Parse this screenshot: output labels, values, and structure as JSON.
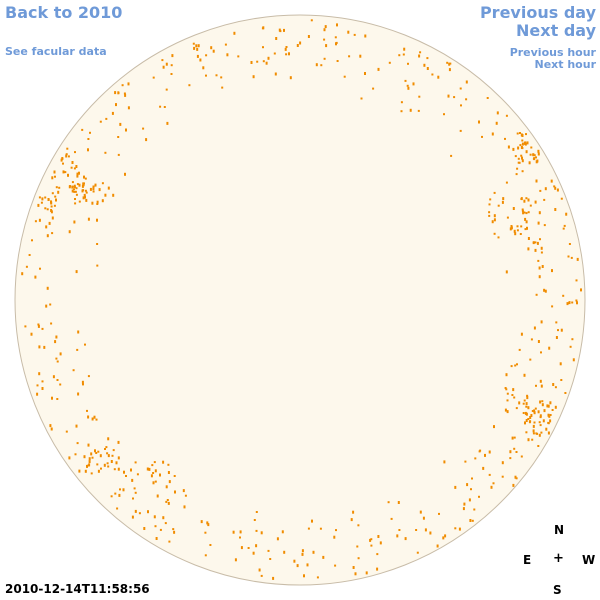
{
  "nav": {
    "back_label": "Back to 2010",
    "previous_day_label": "Previous day",
    "next_day_label": "Next day",
    "facular_label": "See facular data",
    "previous_hour_label": "Previous hour",
    "next_hour_label": "Next hour"
  },
  "compass": {
    "north": "N",
    "south": "S",
    "east": "E",
    "west": "W",
    "center": "+"
  },
  "timestamp": "2010-12-14T11:58:56",
  "colors": {
    "link": "#6f9ad8",
    "disk_fill": "#fdf8ec",
    "disk_stroke": "#c8bca8",
    "facula": "#f08c00"
  }
}
